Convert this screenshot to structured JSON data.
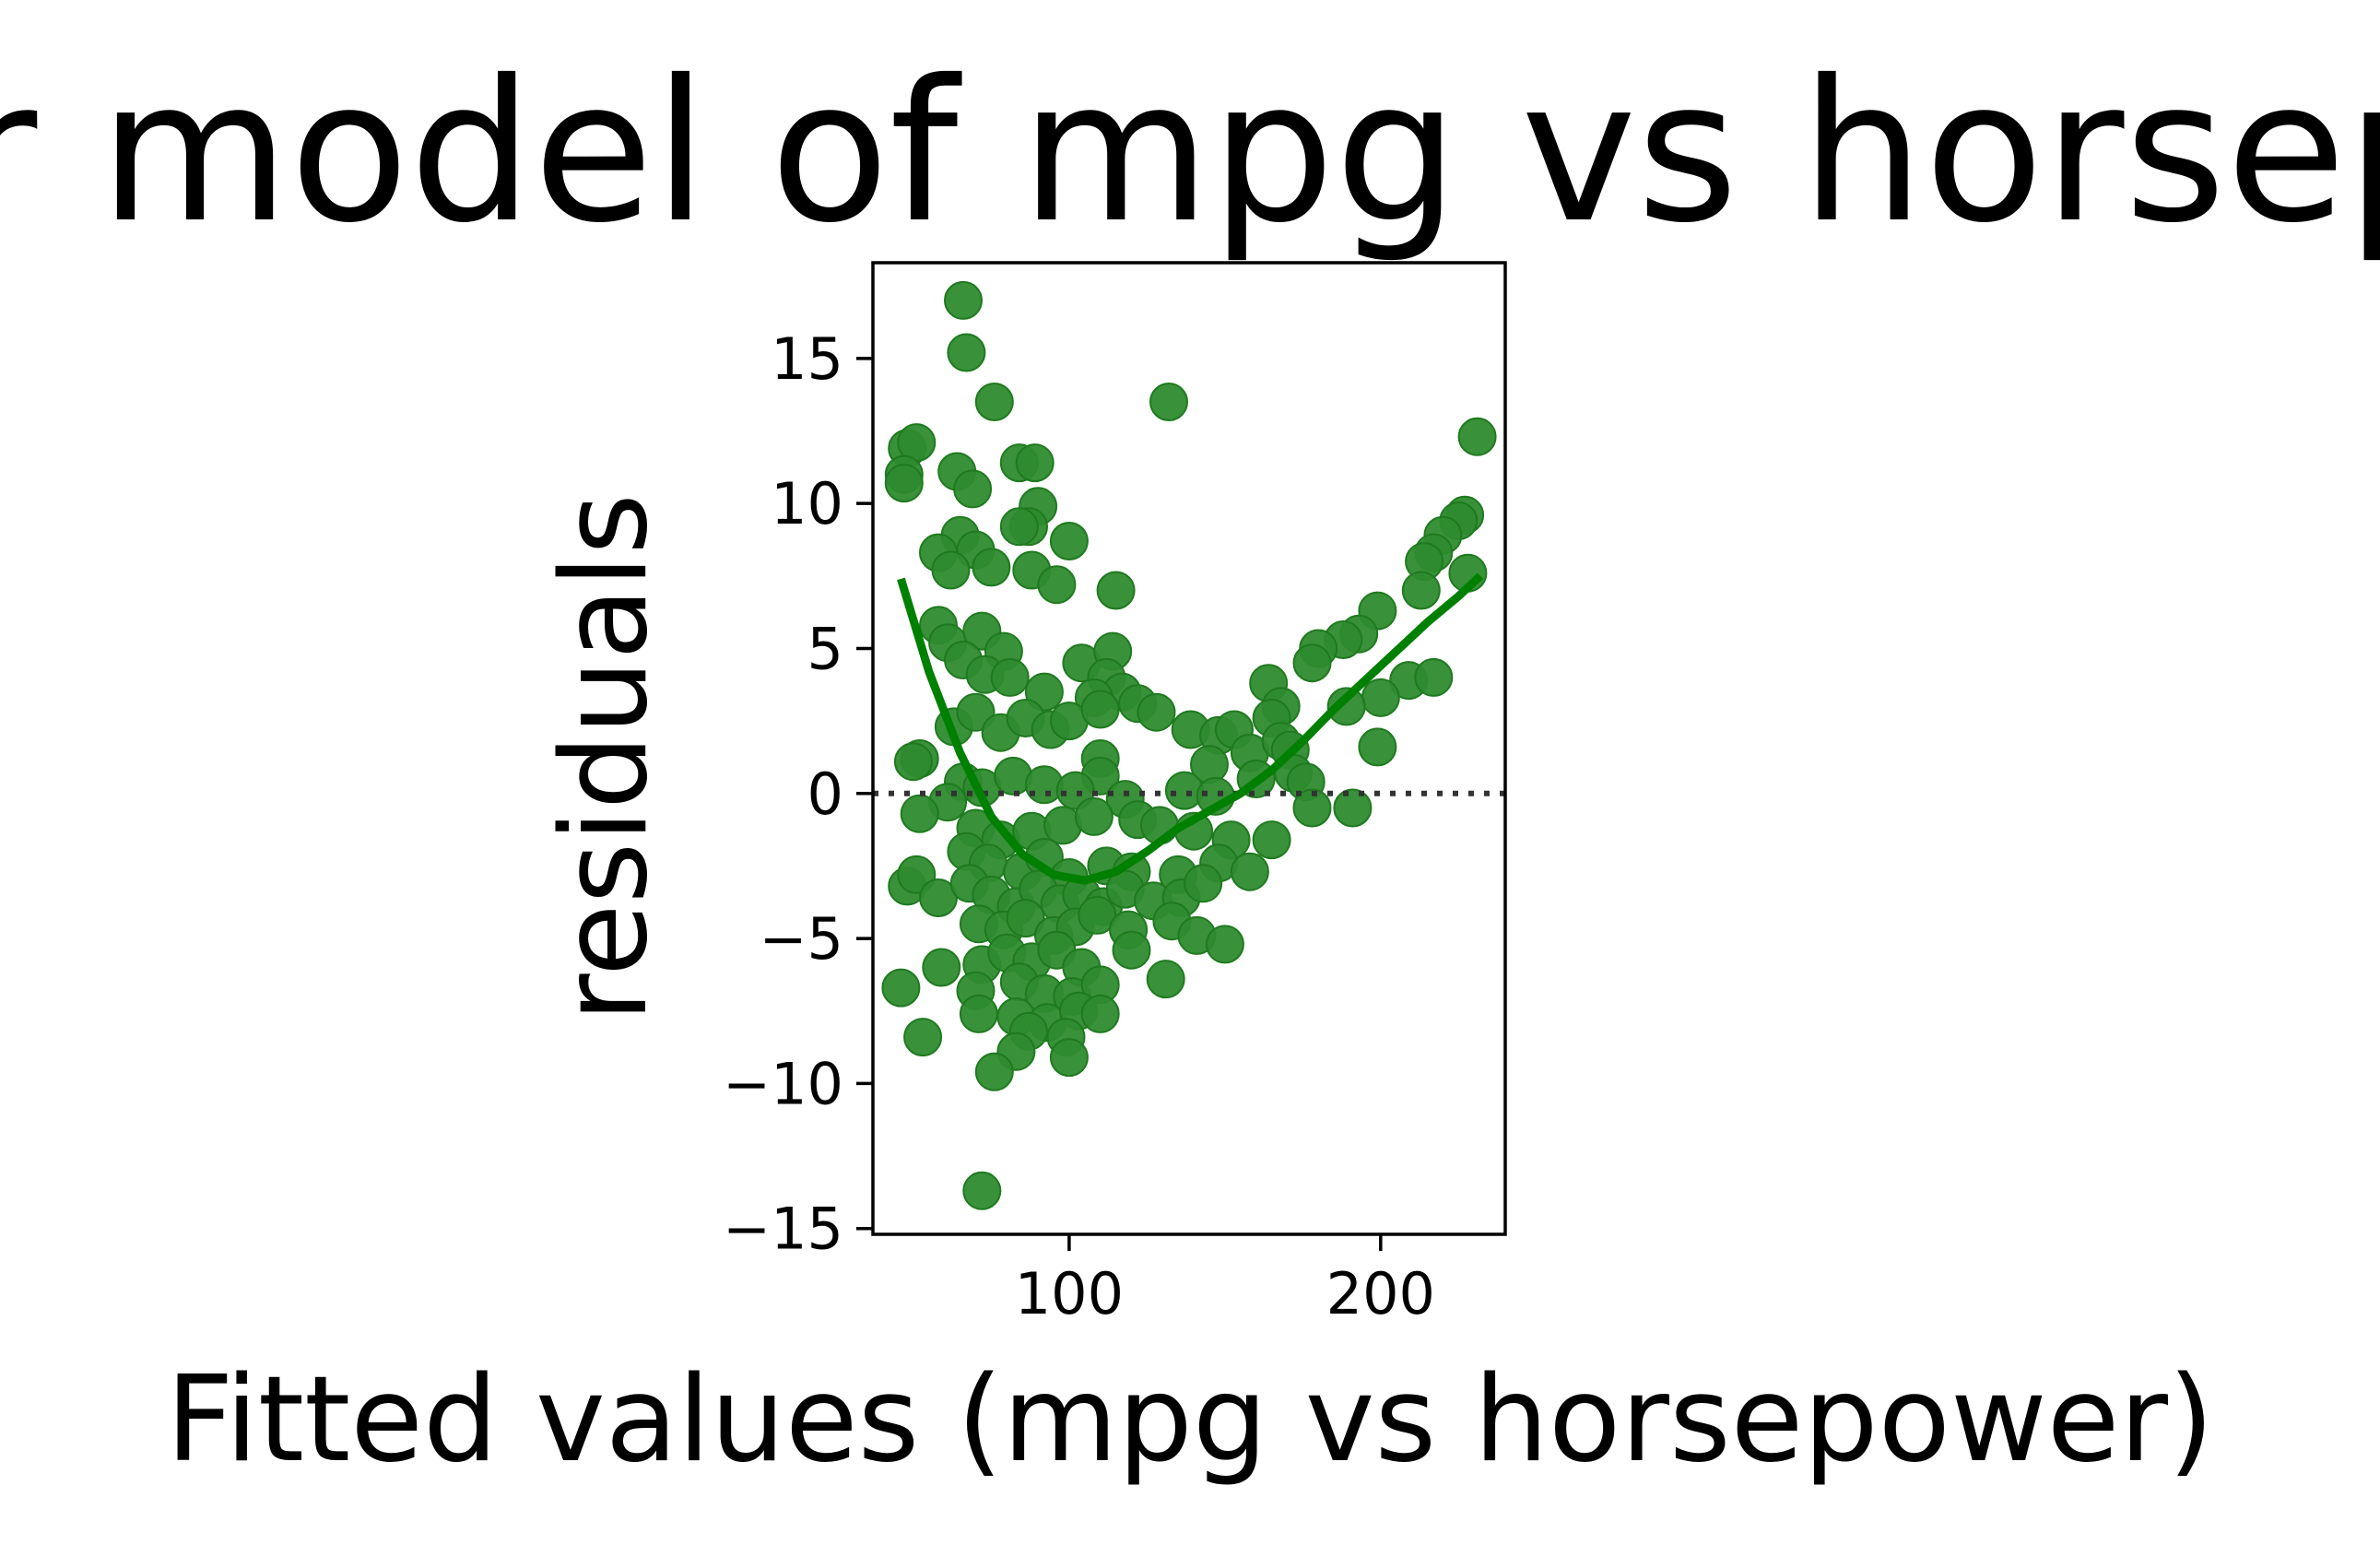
{
  "chart_data": {
    "type": "scatter",
    "title": "Linear model of mpg vs horsepower",
    "xlabel": "Fitted values (mpg vs horsepower)",
    "ylabel": "residuals",
    "xlim": [
      37,
      240
    ],
    "ylim": [
      -15.2,
      18.3
    ],
    "xticks": [
      100,
      200
    ],
    "xtick_labels": [
      "100",
      "200"
    ],
    "yticks": [
      -15,
      -10,
      -5,
      0,
      5,
      10,
      15
    ],
    "ytick_labels": [
      "−15",
      "−10",
      "−5",
      "0",
      "5",
      "10",
      "15"
    ],
    "grid": false,
    "legend": "none",
    "colors": {
      "points": "#2e8b2e",
      "lowess": "#008000",
      "zero_line": "#333333"
    },
    "reference_line": {
      "y": 0,
      "style": "dotted"
    },
    "lowess": [
      {
        "x": 46,
        "y": 7.4
      },
      {
        "x": 55,
        "y": 4.2
      },
      {
        "x": 65,
        "y": 1.4
      },
      {
        "x": 75,
        "y": -0.8
      },
      {
        "x": 85,
        "y": -2.1
      },
      {
        "x": 95,
        "y": -2.8
      },
      {
        "x": 105,
        "y": -3.0
      },
      {
        "x": 115,
        "y": -2.7
      },
      {
        "x": 125,
        "y": -2.0
      },
      {
        "x": 135,
        "y": -1.2
      },
      {
        "x": 145,
        "y": -0.6
      },
      {
        "x": 155,
        "y": 0.0
      },
      {
        "x": 165,
        "y": 0.8
      },
      {
        "x": 175,
        "y": 1.8
      },
      {
        "x": 185,
        "y": 2.9
      },
      {
        "x": 195,
        "y": 3.9
      },
      {
        "x": 205,
        "y": 4.9
      },
      {
        "x": 215,
        "y": 5.9
      },
      {
        "x": 225,
        "y": 6.8
      },
      {
        "x": 232,
        "y": 7.5
      }
    ],
    "points": [
      [
        66,
        17.0
      ],
      [
        67,
        15.2
      ],
      [
        76,
        13.5
      ],
      [
        132,
        13.5
      ],
      [
        231,
        12.3
      ],
      [
        48,
        11.9
      ],
      [
        51,
        12.1
      ],
      [
        47,
        11.0
      ],
      [
        47,
        10.7
      ],
      [
        64,
        11.1
      ],
      [
        69,
        10.5
      ],
      [
        84,
        11.4
      ],
      [
        89,
        11.4
      ],
      [
        90,
        9.9
      ],
      [
        87,
        9.2
      ],
      [
        84,
        9.2
      ],
      [
        100,
        8.7
      ],
      [
        65,
        8.9
      ],
      [
        70,
        8.4
      ],
      [
        58,
        8.3
      ],
      [
        62,
        7.7
      ],
      [
        75,
        7.8
      ],
      [
        88,
        7.7
      ],
      [
        96,
        7.2
      ],
      [
        115,
        7.0
      ],
      [
        227,
        9.6
      ],
      [
        225,
        9.4
      ],
      [
        220,
        8.9
      ],
      [
        217,
        8.3
      ],
      [
        214,
        8.0
      ],
      [
        228,
        7.6
      ],
      [
        213,
        7.0
      ],
      [
        199,
        6.3
      ],
      [
        193,
        5.5
      ],
      [
        188,
        5.3
      ],
      [
        180,
        5.0
      ],
      [
        178,
        4.5
      ],
      [
        164,
        3.8
      ],
      [
        168,
        3.0
      ],
      [
        165,
        2.6
      ],
      [
        209,
        3.9
      ],
      [
        217,
        4.0
      ],
      [
        200,
        3.3
      ],
      [
        189,
        3.0
      ],
      [
        199,
        1.6
      ],
      [
        58,
        5.8
      ],
      [
        61,
        5.2
      ],
      [
        72,
        5.6
      ],
      [
        79,
        4.9
      ],
      [
        66,
        4.6
      ],
      [
        73,
        4.1
      ],
      [
        81,
        4.0
      ],
      [
        92,
        3.5
      ],
      [
        104,
        4.5
      ],
      [
        114,
        4.9
      ],
      [
        112,
        4.0
      ],
      [
        117,
        3.5
      ],
      [
        122,
        3.1
      ],
      [
        128,
        2.8
      ],
      [
        108,
        3.3
      ],
      [
        52,
        1.2
      ],
      [
        50,
        1.1
      ],
      [
        63,
        2.3
      ],
      [
        70,
        2.8
      ],
      [
        78,
        2.1
      ],
      [
        86,
        2.6
      ],
      [
        94,
        2.2
      ],
      [
        100,
        2.5
      ],
      [
        110,
        2.9
      ],
      [
        110,
        1.2
      ],
      [
        110,
        0.6
      ],
      [
        139,
        2.2
      ],
      [
        148,
        2.0
      ],
      [
        153,
        2.2
      ],
      [
        158,
        1.4
      ],
      [
        168,
        1.8
      ],
      [
        171,
        1.5
      ],
      [
        145,
        1.0
      ],
      [
        66,
        0.4
      ],
      [
        72,
        0.2
      ],
      [
        82,
        0.6
      ],
      [
        92,
        0.3
      ],
      [
        102,
        0.1
      ],
      [
        118,
        -0.2
      ],
      [
        137,
        0.1
      ],
      [
        147,
        -0.1
      ],
      [
        160,
        0.5
      ],
      [
        172,
        0.7
      ],
      [
        176,
        0.4
      ],
      [
        178,
        -0.5
      ],
      [
        191,
        -0.5
      ],
      [
        61,
        -0.3
      ],
      [
        52,
        -0.7
      ],
      [
        70,
        -1.2
      ],
      [
        78,
        -1.6
      ],
      [
        88,
        -1.3
      ],
      [
        98,
        -1.1
      ],
      [
        108,
        -0.8
      ],
      [
        122,
        -0.9
      ],
      [
        129,
        -1.1
      ],
      [
        140,
        -1.3
      ],
      [
        152,
        -1.6
      ],
      [
        165,
        -1.6
      ],
      [
        67,
        -2.0
      ],
      [
        74,
        -2.4
      ],
      [
        85,
        -2.7
      ],
      [
        92,
        -2.2
      ],
      [
        100,
        -2.9
      ],
      [
        112,
        -2.5
      ],
      [
        120,
        -2.7
      ],
      [
        135,
        -2.8
      ],
      [
        148,
        -2.4
      ],
      [
        158,
        -2.7
      ],
      [
        48,
        -3.2
      ],
      [
        51,
        -2.8
      ],
      [
        58,
        -3.6
      ],
      [
        68,
        -3.1
      ],
      [
        75,
        -3.5
      ],
      [
        83,
        -3.9
      ],
      [
        90,
        -3.3
      ],
      [
        97,
        -3.8
      ],
      [
        104,
        -3.5
      ],
      [
        111,
        -3.9
      ],
      [
        118,
        -3.3
      ],
      [
        127,
        -3.7
      ],
      [
        136,
        -3.6
      ],
      [
        143,
        -3.1
      ],
      [
        71,
        -4.5
      ],
      [
        79,
        -4.7
      ],
      [
        86,
        -4.3
      ],
      [
        95,
        -4.9
      ],
      [
        102,
        -4.6
      ],
      [
        109,
        -4.2
      ],
      [
        119,
        -4.7
      ],
      [
        133,
        -4.4
      ],
      [
        141,
        -4.9
      ],
      [
        150,
        -5.2
      ],
      [
        59,
        -6.0
      ],
      [
        72,
        -5.9
      ],
      [
        80,
        -5.5
      ],
      [
        88,
        -5.8
      ],
      [
        96,
        -5.4
      ],
      [
        104,
        -6.0
      ],
      [
        120,
        -5.4
      ],
      [
        131,
        -6.4
      ],
      [
        46,
        -6.7
      ],
      [
        70,
        -6.8
      ],
      [
        84,
        -6.5
      ],
      [
        92,
        -6.9
      ],
      [
        101,
        -7.0
      ],
      [
        110,
        -6.6
      ],
      [
        71,
        -7.6
      ],
      [
        83,
        -7.7
      ],
      [
        93,
        -7.9
      ],
      [
        103,
        -7.5
      ],
      [
        110,
        -7.6
      ],
      [
        53,
        -8.4
      ],
      [
        87,
        -8.2
      ],
      [
        99,
        -8.4
      ],
      [
        83,
        -8.9
      ],
      [
        100,
        -9.1
      ],
      [
        76,
        -9.6
      ],
      [
        72,
        -13.7
      ]
    ]
  }
}
